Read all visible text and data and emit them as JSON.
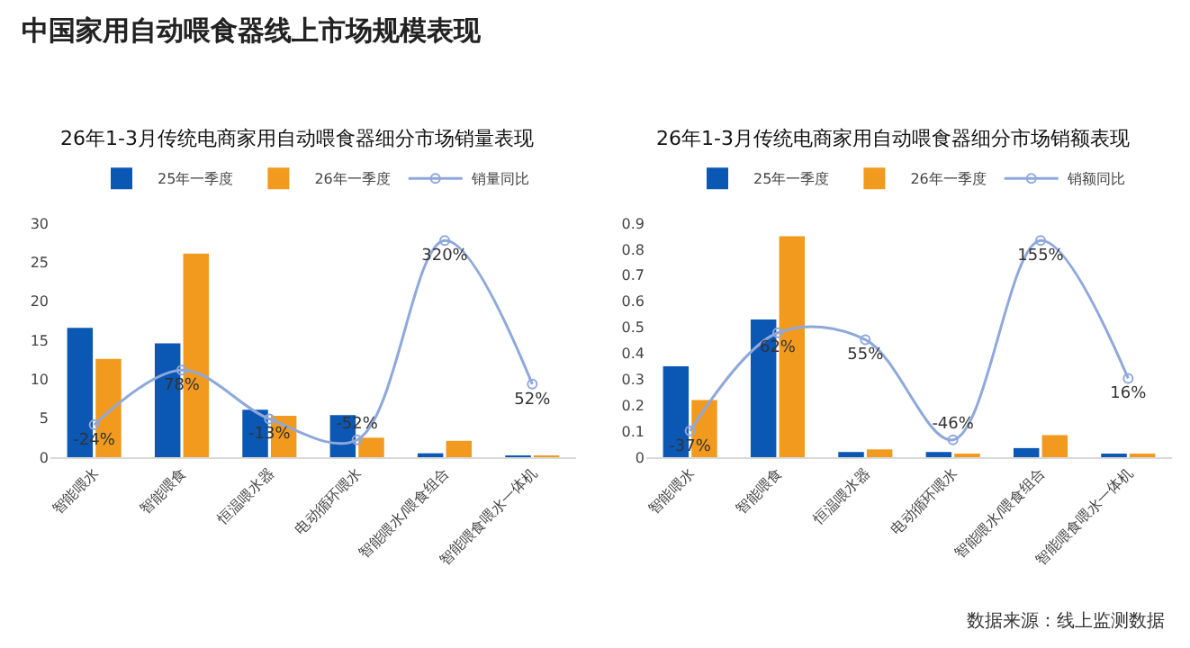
{
  "chart_data": [
    {
      "type": "bar",
      "title": "26年1-3月传统电商家用自动喂食器细分市场销量表现",
      "annotations": [
        "中国家用自动喂食器线上市场规模表现"
      ],
      "categories": [
        "智能喂水",
        "智能喂食",
        "恒温喂水器",
        "电动循环喂水",
        "智能喂水/喂食组合",
        "智能喂食喂水一体机"
      ],
      "series": [
        {
          "name": "25年一季度",
          "color": "#0b57b4",
          "values": [
            16.6,
            14.6,
            6.1,
            5.4,
            0.5,
            0.1
          ]
        },
        {
          "name": "26年一季度",
          "color": "#f29a1d",
          "values": [
            12.6,
            26.1,
            5.3,
            2.5,
            2.1,
            0.1
          ]
        },
        {
          "name": "销量同比",
          "type": "line",
          "axis": "y2",
          "color": "#8fa8dc",
          "values": [
            -24,
            78,
            -13,
            -52,
            320,
            52
          ],
          "value_labels": [
            "-24%",
            "78%",
            "-13%",
            "-52%",
            "320%",
            "52%"
          ]
        }
      ],
      "ylim": [
        0,
        30
      ],
      "yticks": [
        0,
        5,
        10,
        15,
        20,
        25,
        30
      ],
      "legend": "top",
      "marker": "circle",
      "grid": false
    },
    {
      "type": "bar",
      "title": "26年1-3月传统电商家用自动喂食器细分市场销额表现",
      "annotations": [
        "数据来源：线上监测数据"
      ],
      "categories": [
        "智能喂水",
        "智能喂食",
        "恒温喂水器",
        "电动循环喂水",
        "智能喂水/喂食组合",
        "智能喂食喂水一体机"
      ],
      "series": [
        {
          "name": "25年一季度",
          "color": "#0b57b4",
          "values": [
            0.35,
            0.53,
            0.02,
            0.02,
            0.035,
            0.01
          ]
        },
        {
          "name": "26年一季度",
          "color": "#f29a1d",
          "values": [
            0.22,
            0.85,
            0.03,
            0.01,
            0.085,
            0.01
          ]
        },
        {
          "name": "销额同比",
          "type": "line",
          "axis": "y2",
          "color": "#8fa8dc",
          "values": [
            -37,
            62,
            55,
            -46,
            155,
            16
          ],
          "value_labels": [
            "-37%",
            "62%",
            "55%",
            "-46%",
            "155%",
            "16%"
          ]
        }
      ],
      "ylim": [
        0,
        0.9
      ],
      "yticks": [
        0,
        0.1,
        0.2,
        0.3,
        0.4,
        0.5,
        0.6,
        0.7,
        0.8,
        0.9
      ],
      "legend": "top",
      "marker": "circle",
      "grid": false
    }
  ]
}
